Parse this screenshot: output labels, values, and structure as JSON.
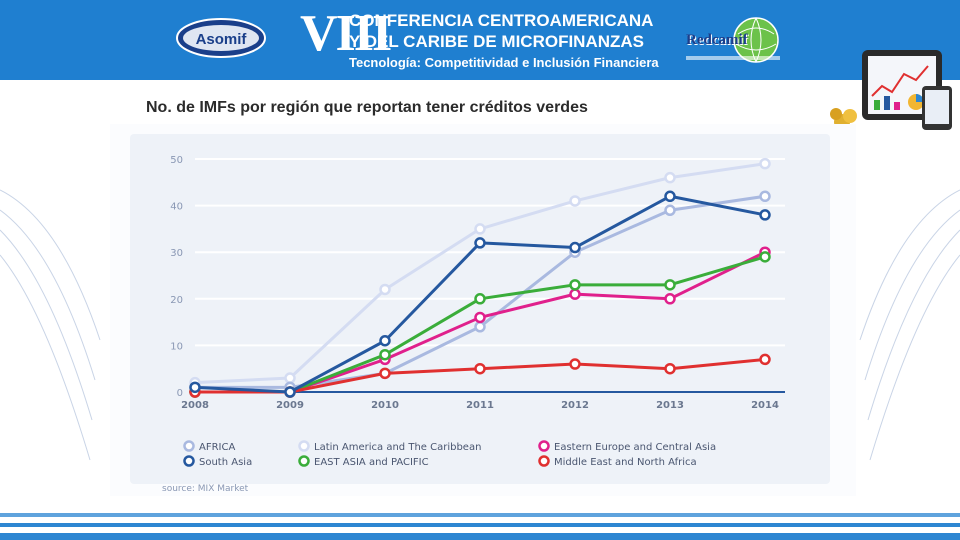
{
  "header": {
    "conference_number": "VIII",
    "line1": "CONFERENCIA CENTROAMERICANA",
    "line2": "Y DEL CARIBE DE MICROFINANZAS",
    "line3": "Tecnología: Competitividad e Inclusión Financiera",
    "logo_left": "Asomif",
    "logo_right": "Redcamif"
  },
  "slide_title": "No. de IMFs por región que reportan tener créditos verdes",
  "source": "source: MIX Market",
  "colors": {
    "banner": "#1f7fd0",
    "africa": "#a9b9e0",
    "latam": "#d4dcf2",
    "eastern_europe": "#e0208c",
    "south_asia": "#25589f",
    "east_asia": "#3aad3a",
    "mena": "#e03030"
  },
  "chart_data": {
    "type": "line",
    "title": "",
    "xlabel": "",
    "ylabel": "",
    "x": [
      "2008",
      "2009",
      "2010",
      "2011",
      "2012",
      "2013",
      "2014"
    ],
    "ylim": [
      0,
      50
    ],
    "yticks": [
      "0",
      "10",
      "20",
      "30",
      "40",
      "50"
    ],
    "grid": true,
    "legend_position": "bottom",
    "series": [
      {
        "name": "Latin America and The Caribbean",
        "color": "#d4dcf2",
        "values": [
          2,
          3,
          22,
          35,
          41,
          46,
          49
        ]
      },
      {
        "name": "AFRICA",
        "color": "#a9b9e0",
        "values": [
          1,
          1,
          4,
          14,
          30,
          39,
          42
        ]
      },
      {
        "name": "Eastern Europe and Central Asia",
        "color": "#e0208c",
        "values": [
          0,
          0,
          7,
          16,
          21,
          20,
          30
        ]
      },
      {
        "name": "EAST ASIA and PACIFIC",
        "color": "#3aad3a",
        "values": [
          0,
          0,
          8,
          20,
          23,
          23,
          29
        ]
      },
      {
        "name": "Middle East and North Africa",
        "color": "#e03030",
        "values": [
          0,
          0,
          4,
          5,
          6,
          5,
          7
        ]
      },
      {
        "name": "South Asia",
        "color": "#25589f",
        "values": [
          1,
          0,
          11,
          32,
          31,
          42,
          38
        ]
      }
    ],
    "legend_order": [
      "AFRICA",
      "Latin America and The Caribbean",
      "Eastern Europe and Central Asia",
      "South Asia",
      "EAST ASIA and PACIFIC",
      "Middle East and North Africa"
    ]
  }
}
